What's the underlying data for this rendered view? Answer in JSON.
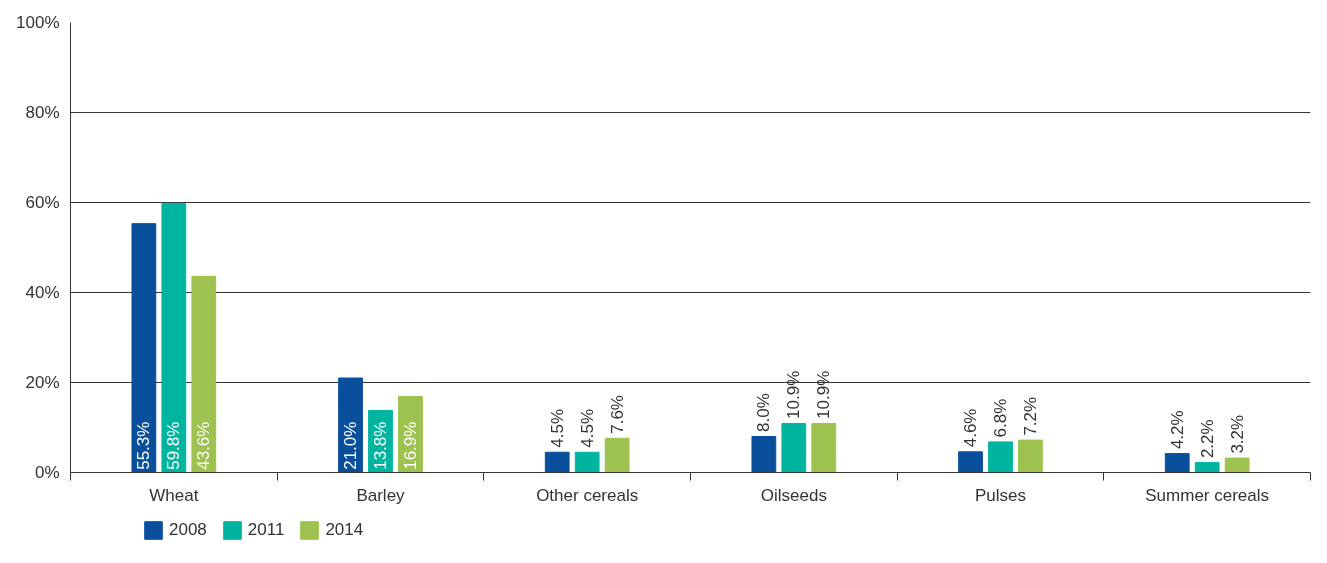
{
  "chart_data": {
    "type": "bar",
    "categories": [
      "Wheat",
      "Barley",
      "Other cereals",
      "Oilseeds",
      "Pulses",
      "Summer cereals"
    ],
    "series": [
      {
        "name": "2008",
        "color": "#0a4f9c",
        "values": [
          55.3,
          21.0,
          4.5,
          8.0,
          4.6,
          4.2
        ],
        "value_labels": [
          "55.3%",
          "21.0%",
          "4.5%",
          "8.0%",
          "4.6%",
          "4.2%"
        ]
      },
      {
        "name": "2011",
        "color": "#00b5a0",
        "values": [
          59.8,
          13.8,
          4.5,
          10.9,
          6.8,
          2.2
        ],
        "value_labels": [
          "59.8%",
          "13.8%",
          "4.5%",
          "10.9%",
          "6.8%",
          "2.2%"
        ]
      },
      {
        "name": "2014",
        "color": "#9dc24f",
        "values": [
          43.6,
          16.9,
          7.6,
          10.9,
          7.2,
          3.2
        ],
        "value_labels": [
          "43.6%",
          "16.9%",
          "7.6%",
          "10.9%",
          "7.2%",
          "3.2%"
        ]
      }
    ],
    "ylim": [
      0,
      100
    ],
    "yticks": [
      {
        "value": 0,
        "label": "0%"
      },
      {
        "value": 20,
        "label": "20%"
      },
      {
        "value": 40,
        "label": "40%"
      },
      {
        "value": 60,
        "label": "60%"
      },
      {
        "value": 80,
        "label": "80%"
      },
      {
        "value": 100,
        "label": "100%"
      }
    ],
    "grid": "y",
    "legend": "bottom left"
  }
}
